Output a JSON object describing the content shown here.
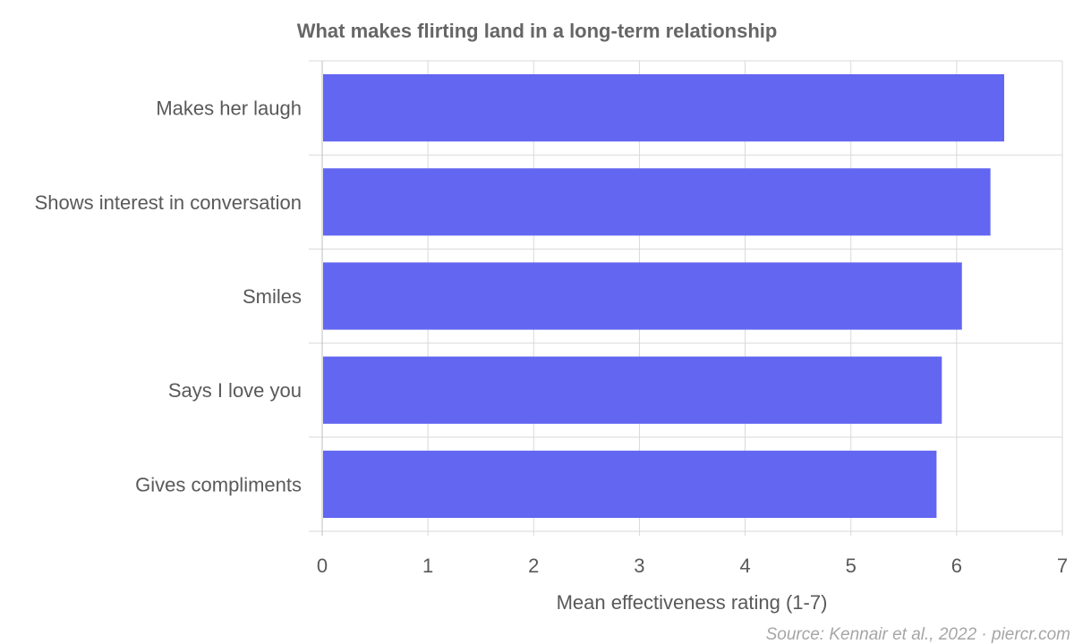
{
  "chart_data": {
    "type": "bar",
    "orientation": "horizontal",
    "title": "What makes flirting land in a long-term relationship",
    "categories": [
      "Makes her laugh",
      "Shows interest in conversation",
      "Smiles",
      "Says I love you",
      "Gives compliments"
    ],
    "values": [
      6.45,
      6.32,
      6.05,
      5.86,
      5.81
    ],
    "xlabel": "Mean effectiveness rating (1-7)",
    "ylabel": "",
    "xlim": [
      0,
      7
    ],
    "ticks": [
      "0",
      "1",
      "2",
      "3",
      "4",
      "5",
      "6",
      "7"
    ],
    "grid": true,
    "bar_color": "#6366f1",
    "source": "Source: Kennair et al., 2022 · piercr.com"
  }
}
